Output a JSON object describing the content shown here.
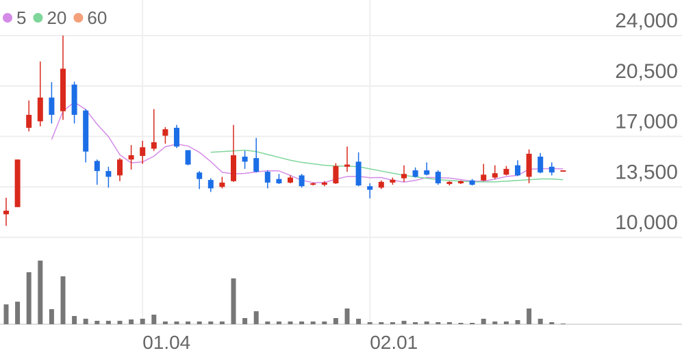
{
  "chart_data": {
    "type": "candlestick",
    "categories": [
      null,
      null,
      null,
      null,
      null,
      null,
      null,
      null,
      null,
      null,
      null,
      null,
      "01.04",
      null,
      null,
      null,
      null,
      null,
      null,
      null,
      null,
      null,
      null,
      null,
      null,
      null,
      null,
      null,
      null,
      null,
      null,
      null,
      "02.01",
      null,
      null,
      null,
      null,
      null,
      null,
      null,
      null,
      null,
      null,
      null,
      null,
      null,
      null,
      null,
      null,
      null
    ],
    "open": [
      11600,
      12100,
      17600,
      18050,
      19700,
      18750,
      20600,
      18800,
      15300,
      14600,
      14300,
      15400,
      15650,
      16150,
      17050,
      17600,
      16050,
      14500,
      13980,
      13500,
      13900,
      15600,
      15500,
      14550,
      14050,
      13800,
      14300,
      13650,
      13650,
      13750,
      14900,
      15250,
      13550,
      13450,
      13800,
      14100,
      14650,
      14650,
      14550,
      13700,
      13750,
      13950,
      13950,
      14150,
      14350,
      15000,
      14200,
      15600,
      14900,
      14580
    ],
    "high": [
      12750,
      15400,
      19500,
      22200,
      20770,
      24000,
      20800,
      18900,
      15400,
      14900,
      15500,
      16400,
      16700,
      18900,
      17650,
      17800,
      16050,
      14600,
      14100,
      14200,
      17800,
      16000,
      16900,
      14650,
      14400,
      14300,
      14400,
      13800,
      13900,
      15150,
      16300,
      15900,
      13750,
      13950,
      14150,
      15000,
      14850,
      15200,
      14650,
      13900,
      13950,
      14050,
      15100,
      15000,
      14950,
      15350,
      16100,
      15850,
      15200,
      14650
    ],
    "low": [
      10800,
      12100,
      17350,
      17700,
      17900,
      18150,
      17900,
      15200,
      13650,
      13450,
      13900,
      14700,
      15100,
      16000,
      16500,
      16200,
      15000,
      13350,
      13150,
      13400,
      13850,
      14750,
      14500,
      13400,
      13700,
      13750,
      13450,
      13600,
      13550,
      13700,
      14550,
      13550,
      12700,
      13350,
      13650,
      13850,
      14150,
      14300,
      13650,
      13600,
      13700,
      13600,
      13900,
      14050,
      14300,
      14250,
      13750,
      14450,
      14300,
      14580
    ],
    "close": [
      11850,
      15400,
      18500,
      19700,
      18500,
      21700,
      18500,
      15950,
      14600,
      14200,
      15400,
      15700,
      16250,
      16600,
      17500,
      16300,
      15050,
      14050,
      13400,
      13800,
      15700,
      15250,
      14550,
      13800,
      13750,
      14150,
      13550,
      13750,
      13800,
      14950,
      15050,
      13600,
      13300,
      13850,
      14000,
      14400,
      14200,
      14350,
      13750,
      13850,
      13900,
      13650,
      14350,
      14450,
      14750,
      14300,
      15800,
      14500,
      14500,
      14650
    ],
    "volume": [
      290000,
      330000,
      760000,
      930000,
      220000,
      700000,
      120000,
      80000,
      50000,
      50000,
      50000,
      70000,
      80000,
      140000,
      40000,
      40000,
      40000,
      40000,
      40000,
      40000,
      670000,
      90000,
      190000,
      40000,
      40000,
      40000,
      40000,
      40000,
      40000,
      90000,
      230000,
      80000,
      30000,
      30000,
      30000,
      50000,
      30000,
      40000,
      30000,
      30000,
      20000,
      20000,
      80000,
      40000,
      40000,
      60000,
      230000,
      80000,
      30000,
      10000
    ],
    "up_color": "#d9291c",
    "down_color": "#1c6ee6",
    "volume_color": "#777777",
    "series": [
      {
        "name": "5",
        "color": "#d48be8",
        "values": [
          null,
          null,
          null,
          null,
          16790,
          18760,
          19380,
          18870,
          17850,
          16990,
          15730,
          15170,
          15230,
          15630,
          16290,
          16470,
          16340,
          15900,
          15260,
          14520,
          14400,
          14440,
          14540,
          14620,
          14610,
          14300,
          13960,
          13800,
          13800,
          14040,
          14220,
          14230,
          14140,
          14150,
          13960,
          13830,
          13950,
          14160,
          14140,
          14110,
          14010,
          13900,
          13900,
          14040,
          14220,
          14300,
          14730,
          14760,
          14770,
          14750
        ]
      },
      {
        "name": "20",
        "color": "#7ed69a",
        "values": [
          null,
          null,
          null,
          null,
          null,
          null,
          null,
          null,
          null,
          null,
          null,
          null,
          null,
          null,
          null,
          null,
          null,
          null,
          15900,
          15950,
          16000,
          16050,
          15950,
          15750,
          15550,
          15350,
          15200,
          15100,
          15000,
          14950,
          14950,
          14900,
          14750,
          14600,
          14450,
          14300,
          14200,
          14100,
          14000,
          13950,
          13900,
          13850,
          13850,
          13850,
          13900,
          13950,
          14000,
          14050,
          14050,
          14000
        ]
      },
      {
        "name": "60",
        "color": "#f4a07a",
        "values": [
          null,
          null,
          null,
          null,
          null,
          null,
          null,
          null,
          null,
          null,
          null,
          null,
          null,
          null,
          null,
          null,
          null,
          null,
          null,
          null,
          null,
          null,
          null,
          null,
          null,
          null,
          null,
          null,
          null,
          null,
          null,
          null,
          null,
          null,
          null,
          null,
          null,
          null,
          null,
          null,
          null,
          null,
          null,
          null,
          null,
          null,
          null,
          null,
          null,
          null
        ]
      }
    ],
    "ylim": [
      10000,
      24000
    ],
    "yticks": [
      {
        "value": 24000,
        "label": "24,000"
      },
      {
        "value": 20500,
        "label": "20,500"
      },
      {
        "value": 17000,
        "label": "17,000"
      },
      {
        "value": 13500,
        "label": "13,500"
      },
      {
        "value": 10000,
        "label": "10,000"
      }
    ],
    "volume_ylim": [
      0,
      1240000
    ],
    "grid": true
  }
}
